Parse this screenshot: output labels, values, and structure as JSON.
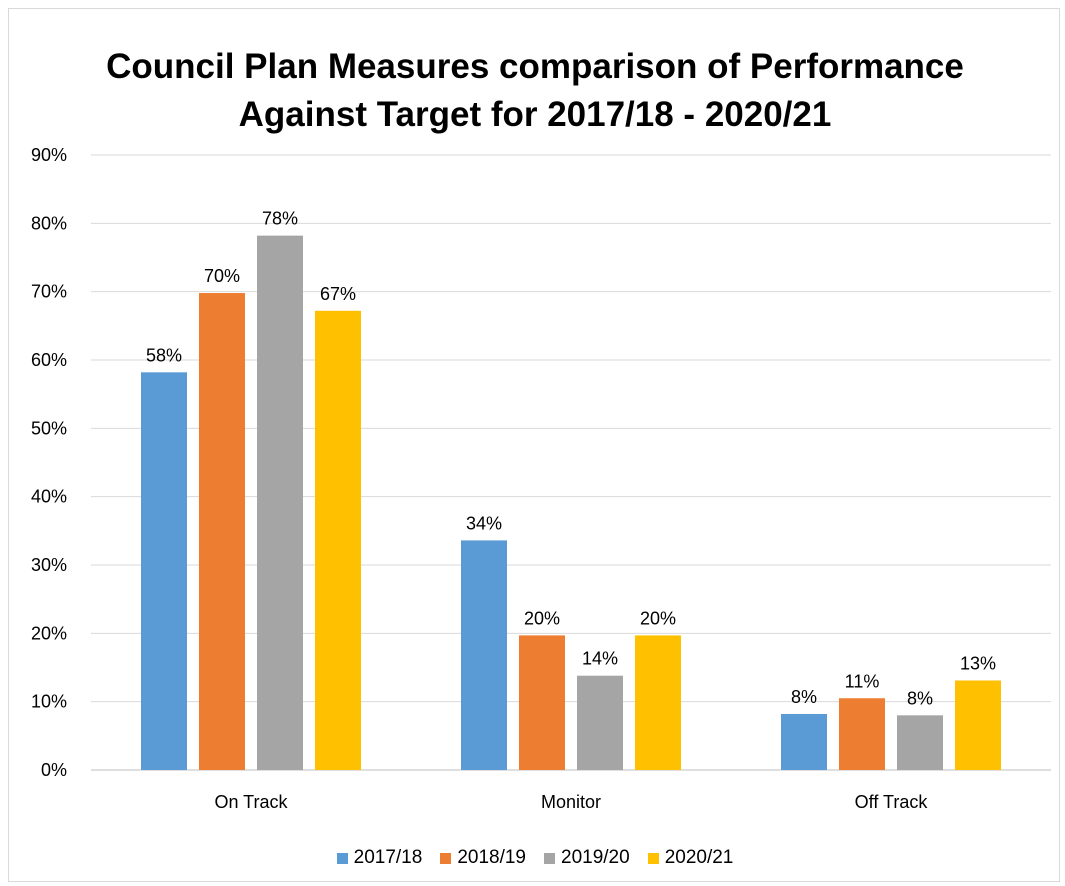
{
  "chart_data": {
    "type": "bar",
    "title_lines": [
      "Council Plan Measures comparison of Performance",
      "Against Target for 2017/18 - 2020/21"
    ],
    "categories": [
      "On Track",
      "Monitor",
      "Off Track"
    ],
    "series": [
      {
        "name": "2017/18",
        "color": "#5B9BD5",
        "values": [
          58,
          34,
          8
        ],
        "labels": [
          "58%",
          "34%",
          "8%"
        ]
      },
      {
        "name": "2018/19",
        "color": "#ED7D31",
        "values": [
          70,
          20,
          11
        ],
        "labels": [
          "70%",
          "20%",
          "11%"
        ]
      },
      {
        "name": "2019/20",
        "color": "#A5A5A5",
        "values": [
          78,
          14,
          8
        ],
        "labels": [
          "78%",
          "14%",
          "8%"
        ]
      },
      {
        "name": "2020/21",
        "color": "#FFC000",
        "values": [
          67,
          20,
          13
        ],
        "labels": [
          "67%",
          "20%",
          "13%"
        ]
      }
    ],
    "plotted_values": [
      [
        58.2,
        33.6,
        8.2
      ],
      [
        69.8,
        19.7,
        10.5
      ],
      [
        78.2,
        13.8,
        8.0
      ],
      [
        67.2,
        19.7,
        13.1
      ]
    ],
    "ylim": [
      0,
      90
    ],
    "yticks": [
      "0%",
      "10%",
      "20%",
      "30%",
      "40%",
      "50%",
      "60%",
      "70%",
      "80%",
      "90%"
    ],
    "ytick_values": [
      0,
      10,
      20,
      30,
      40,
      50,
      60,
      70,
      80,
      90
    ],
    "grid": true,
    "legend_position": "bottom"
  }
}
